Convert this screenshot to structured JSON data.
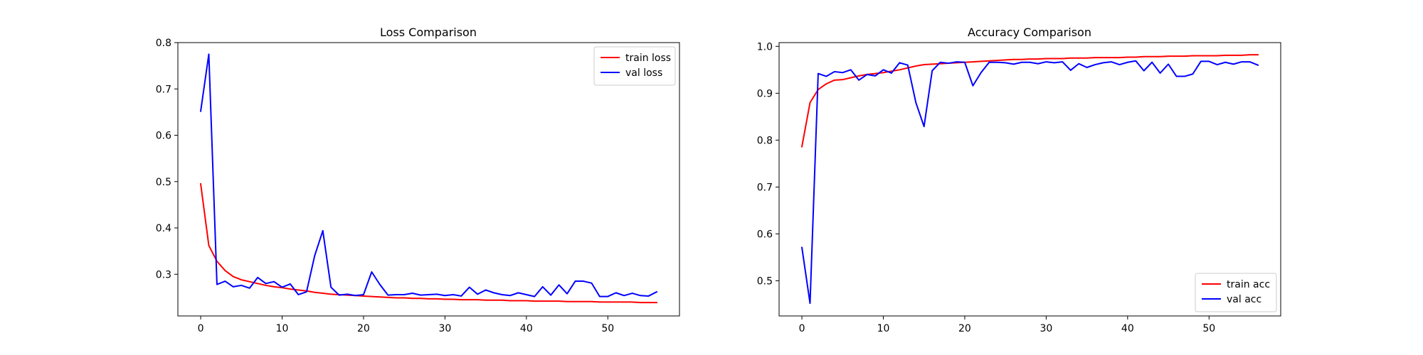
{
  "chart_data": [
    {
      "type": "line",
      "title": "Loss Comparison",
      "xlabel": "",
      "ylabel": "",
      "xlim": [
        -2.8,
        58.8
      ],
      "ylim": [
        0.21,
        0.8
      ],
      "xticks": [
        0,
        10,
        20,
        30,
        40,
        50
      ],
      "yticks": [
        0.3,
        0.4,
        0.5,
        0.6,
        0.7,
        0.8
      ],
      "ytick_decimals": 1,
      "legend_position": "top-right",
      "grid": false,
      "series": [
        {
          "name": "train loss",
          "color": "#ff0000",
          "values": [
            0.495,
            0.362,
            0.328,
            0.308,
            0.295,
            0.288,
            0.284,
            0.28,
            0.276,
            0.273,
            0.271,
            0.268,
            0.266,
            0.264,
            0.261,
            0.259,
            0.257,
            0.256,
            0.255,
            0.254,
            0.253,
            0.252,
            0.251,
            0.25,
            0.249,
            0.249,
            0.248,
            0.248,
            0.247,
            0.247,
            0.246,
            0.246,
            0.245,
            0.245,
            0.245,
            0.244,
            0.244,
            0.244,
            0.243,
            0.243,
            0.243,
            0.242,
            0.242,
            0.242,
            0.242,
            0.241,
            0.241,
            0.241,
            0.241,
            0.24,
            0.24,
            0.24,
            0.24,
            0.24,
            0.239,
            0.239,
            0.239
          ]
        },
        {
          "name": "val loss",
          "color": "#0000ff",
          "values": [
            0.652,
            0.775,
            0.278,
            0.285,
            0.273,
            0.276,
            0.27,
            0.293,
            0.28,
            0.284,
            0.272,
            0.279,
            0.256,
            0.262,
            0.34,
            0.394,
            0.272,
            0.255,
            0.257,
            0.254,
            0.256,
            0.305,
            0.278,
            0.255,
            0.256,
            0.256,
            0.259,
            0.255,
            0.256,
            0.257,
            0.254,
            0.256,
            0.253,
            0.272,
            0.257,
            0.266,
            0.26,
            0.256,
            0.254,
            0.26,
            0.256,
            0.252,
            0.273,
            0.255,
            0.277,
            0.258,
            0.285,
            0.285,
            0.281,
            0.252,
            0.252,
            0.26,
            0.254,
            0.259,
            0.254,
            0.253,
            0.262
          ]
        }
      ]
    },
    {
      "type": "line",
      "title": "Accuracy Comparison",
      "xlabel": "",
      "ylabel": "",
      "xlim": [
        -2.8,
        58.8
      ],
      "ylim": [
        0.425,
        1.008
      ],
      "xticks": [
        0,
        10,
        20,
        30,
        40,
        50
      ],
      "yticks": [
        0.5,
        0.6,
        0.7,
        0.8,
        0.9,
        1.0
      ],
      "ytick_decimals": 1,
      "legend_position": "bottom-right",
      "grid": false,
      "series": [
        {
          "name": "train acc",
          "color": "#ff0000",
          "values": [
            0.786,
            0.88,
            0.908,
            0.92,
            0.928,
            0.929,
            0.933,
            0.937,
            0.94,
            0.942,
            0.944,
            0.947,
            0.95,
            0.954,
            0.958,
            0.961,
            0.962,
            0.963,
            0.964,
            0.965,
            0.966,
            0.967,
            0.968,
            0.969,
            0.97,
            0.971,
            0.972,
            0.972,
            0.973,
            0.973,
            0.974,
            0.974,
            0.974,
            0.975,
            0.975,
            0.975,
            0.976,
            0.976,
            0.976,
            0.976,
            0.977,
            0.977,
            0.978,
            0.978,
            0.978,
            0.979,
            0.979,
            0.979,
            0.98,
            0.98,
            0.98,
            0.98,
            0.981,
            0.981,
            0.981,
            0.982,
            0.982
          ]
        },
        {
          "name": "val acc",
          "color": "#0000ff",
          "values": [
            0.571,
            0.452,
            0.942,
            0.936,
            0.946,
            0.944,
            0.95,
            0.928,
            0.94,
            0.937,
            0.95,
            0.943,
            0.965,
            0.96,
            0.88,
            0.829,
            0.948,
            0.966,
            0.964,
            0.967,
            0.966,
            0.916,
            0.944,
            0.966,
            0.966,
            0.965,
            0.962,
            0.966,
            0.966,
            0.963,
            0.967,
            0.965,
            0.967,
            0.949,
            0.963,
            0.955,
            0.961,
            0.965,
            0.967,
            0.961,
            0.966,
            0.969,
            0.948,
            0.966,
            0.943,
            0.962,
            0.936,
            0.936,
            0.941,
            0.968,
            0.968,
            0.961,
            0.966,
            0.962,
            0.967,
            0.967,
            0.96
          ]
        }
      ]
    }
  ]
}
